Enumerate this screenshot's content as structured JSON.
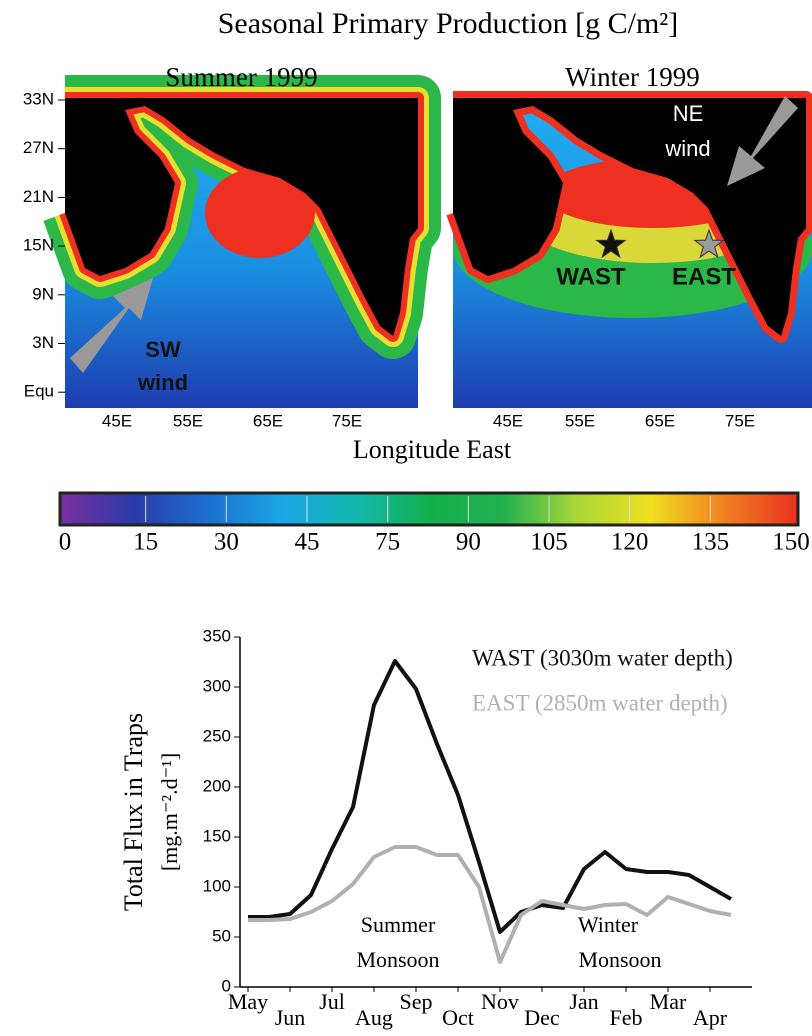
{
  "chart_data": [
    {
      "type": "map",
      "title": "Seasonal Primary Production [g C/m²]",
      "xlabel": "Longitude East",
      "lat_labels": [
        "33N",
        "27N",
        "21N",
        "15N",
        "9N",
        "3N",
        "Equ"
      ],
      "lon_labels": [
        "45E",
        "55E",
        "65E",
        "75E"
      ],
      "panels": [
        {
          "title": "Summer 1999",
          "annotations": [
            "SW",
            "wind"
          ]
        },
        {
          "title": "Winter 1999",
          "annotations": [
            "NE",
            "wind"
          ],
          "stations": [
            {
              "name": "WAST",
              "color": "#111111"
            },
            {
              "name": "EAST",
              "color": "#9a9a9a"
            }
          ]
        }
      ]
    },
    {
      "type": "colorbar",
      "tick_labels": [
        "0",
        "15",
        "30",
        "45",
        "75",
        "90",
        "105",
        "120",
        "135",
        "150"
      ],
      "colors": [
        "#7a2fa0",
        "#2a3aa8",
        "#1c6fd0",
        "#1aa6e6",
        "#14b8b0",
        "#12b04a",
        "#22b050",
        "#a8d838",
        "#f0e020",
        "#f08020",
        "#e83020"
      ]
    },
    {
      "type": "line",
      "ylabel": [
        "Total Flux in Traps",
        "[mg.m⁻².d⁻¹]"
      ],
      "categories": [
        "May",
        null,
        "Jun",
        null,
        "Jul",
        null,
        "Aug",
        null,
        "Sep",
        null,
        "Oct",
        null,
        "Nov",
        null,
        "Dec",
        null,
        "Jan",
        null,
        "Feb",
        null,
        "Mar",
        null,
        "Apr",
        null
      ],
      "series": [
        {
          "name": "WAST (3030m water depth)",
          "color": "#111111",
          "values": [
            70,
            70,
            73,
            92,
            138,
            180,
            282,
            326,
            298,
            243,
            192,
            125,
            55,
            75,
            82,
            79,
            118,
            135,
            118,
            115,
            115,
            112,
            100,
            88
          ]
        },
        {
          "name": "EAST (2850m water depth)",
          "color": "#b0b0b0",
          "values": [
            67,
            67,
            68,
            75,
            86,
            103,
            130,
            140,
            140,
            132,
            132,
            100,
            25,
            72,
            86,
            82,
            78,
            82,
            83,
            72,
            90,
            83,
            76,
            72
          ]
        }
      ],
      "ylim": [
        0,
        350
      ],
      "yticks": [
        0,
        50,
        100,
        150,
        200,
        250,
        300,
        350
      ],
      "annotations": [
        "Summer",
        "Monsoon",
        "Winter",
        "Monsoon"
      ]
    }
  ]
}
